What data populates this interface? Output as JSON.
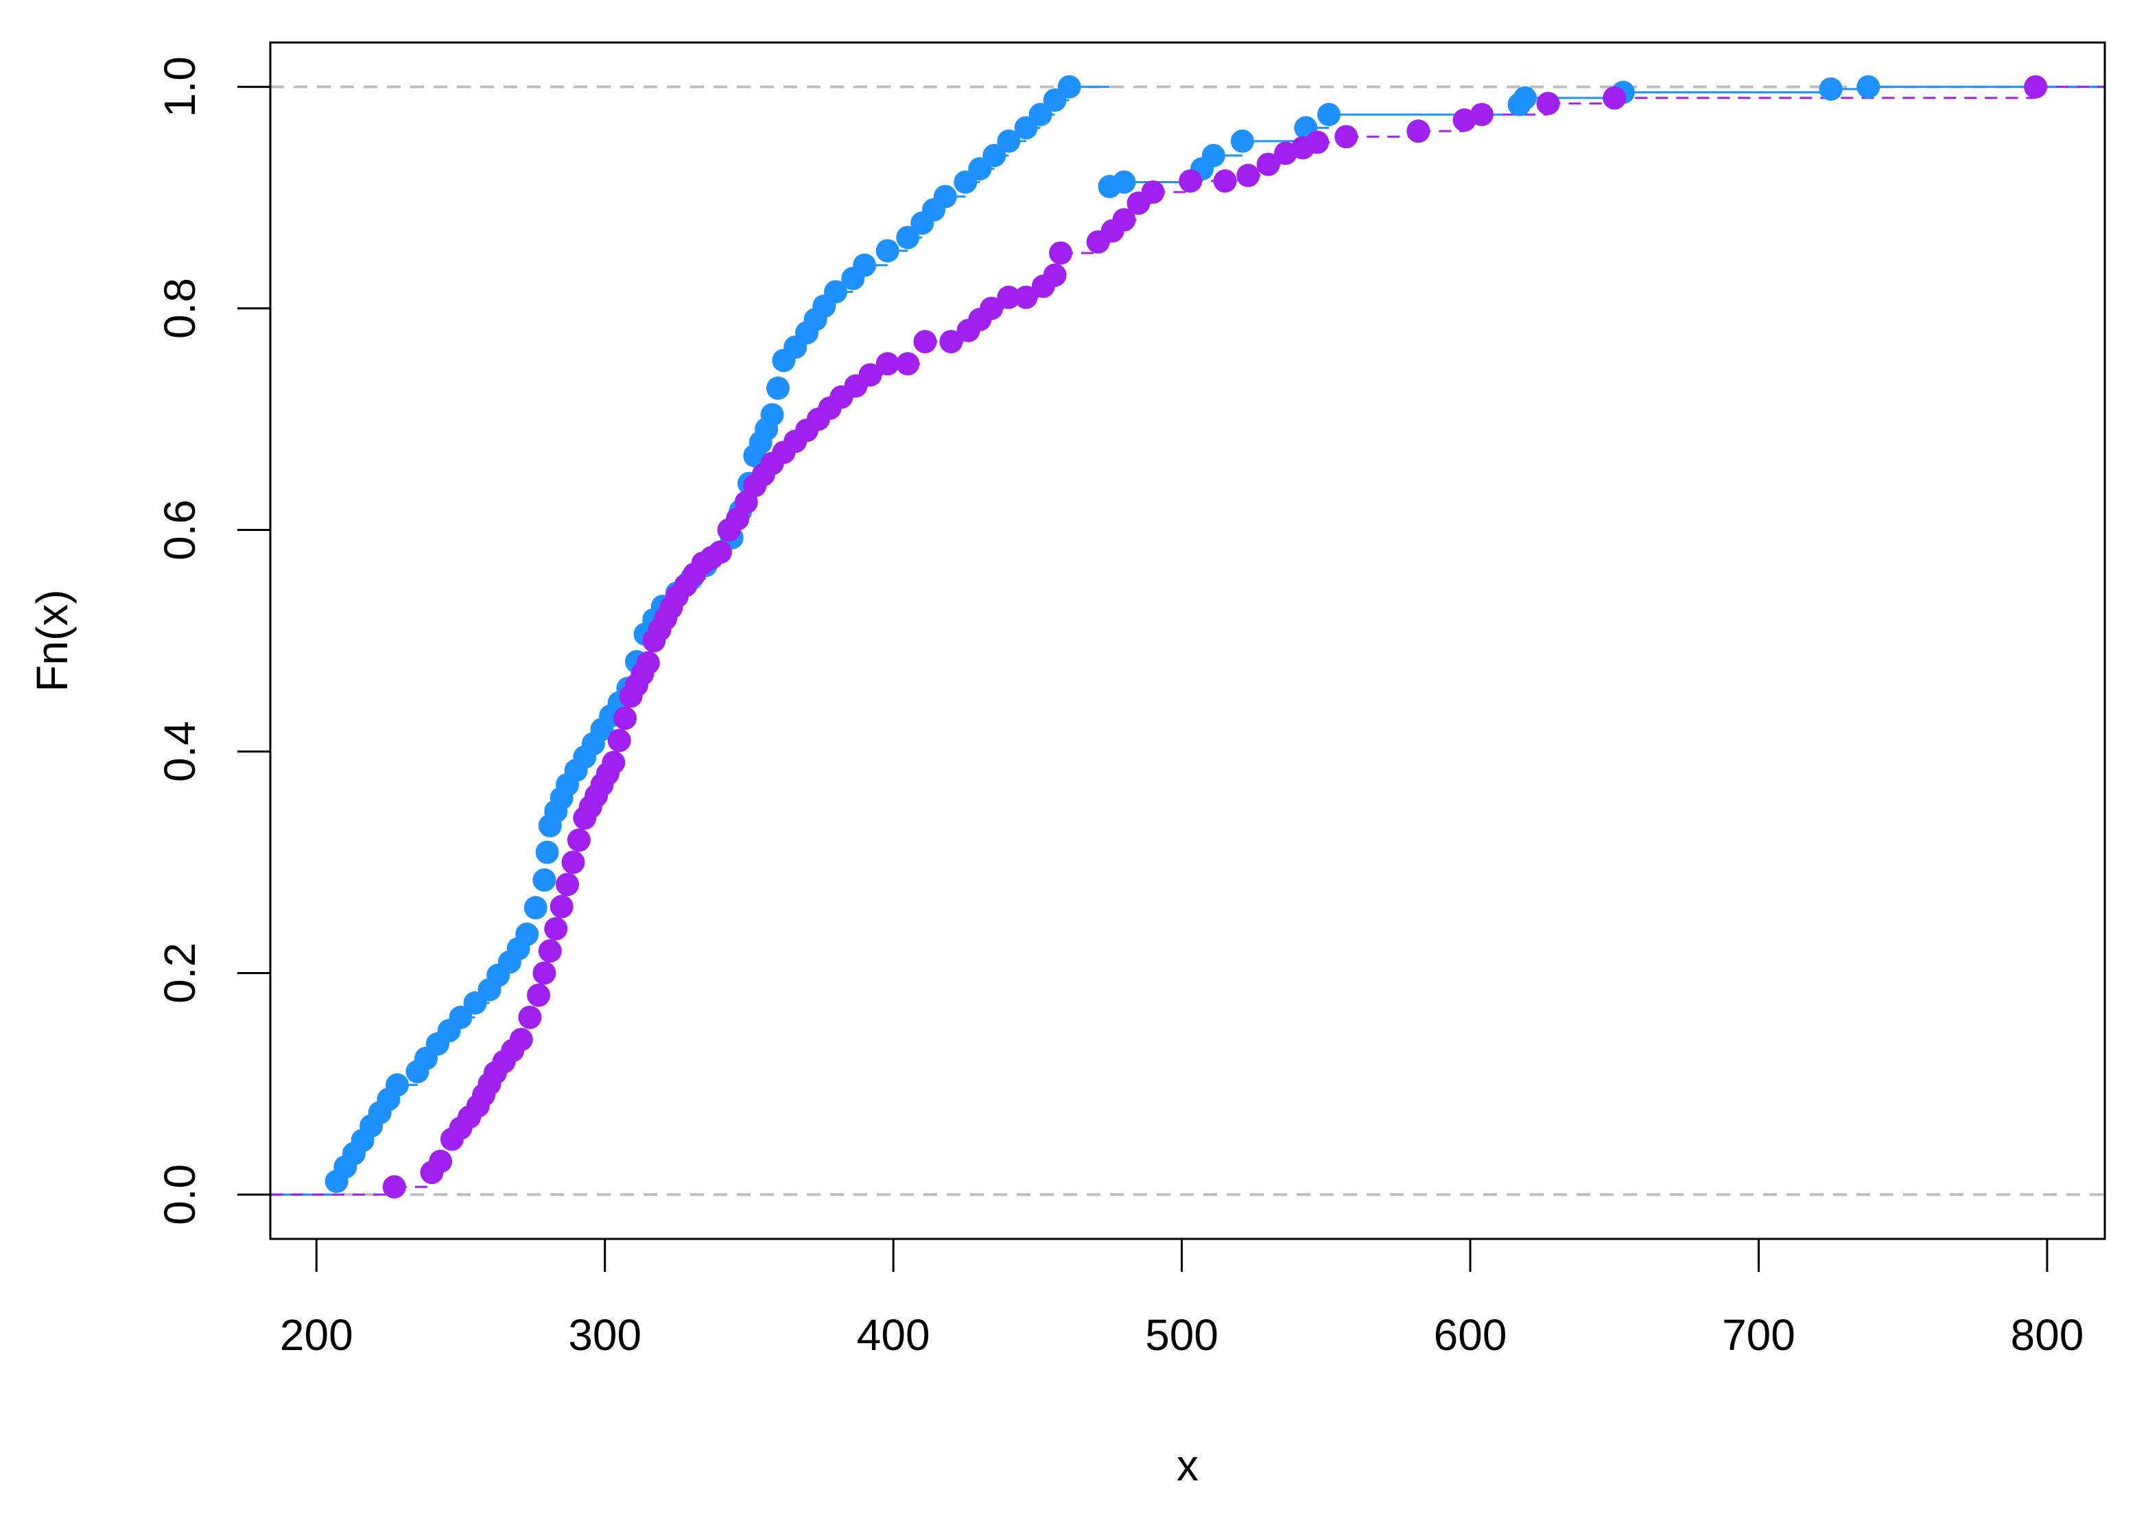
{
  "chart_data": {
    "type": "line",
    "step": true,
    "title": "",
    "xlabel": "x",
    "ylabel": "Fn(x)",
    "xlim": [
      184,
      820
    ],
    "ylim": [
      -0.04,
      1.04
    ],
    "x_ticks": [
      200,
      300,
      400,
      500,
      600,
      700,
      800
    ],
    "y_ticks": [
      0.0,
      0.2,
      0.4,
      0.6,
      0.8,
      1.0
    ],
    "x_tick_labels": [
      "200",
      "300",
      "400",
      "500",
      "600",
      "700",
      "800"
    ],
    "y_tick_labels": [
      "0.0",
      "0.2",
      "0.4",
      "0.6",
      "0.8",
      "1.0"
    ],
    "reference_lines": [
      0,
      1
    ],
    "grid": false,
    "legend": "none",
    "series": [
      {
        "color": "#1E90FF",
        "line_style": "solid",
        "x": [
          207,
          210,
          213,
          216,
          219,
          222,
          225,
          228,
          235,
          238,
          242,
          246,
          250,
          255,
          260,
          263,
          267,
          270,
          273,
          276,
          279,
          280,
          281,
          283,
          285,
          287,
          290,
          293,
          296,
          299,
          302,
          305,
          308,
          311,
          314,
          317,
          320,
          325,
          330,
          335,
          340,
          344,
          347,
          350,
          352,
          354,
          356,
          358,
          360,
          362,
          366,
          370,
          373,
          376,
          380,
          386,
          390,
          398,
          405,
          410,
          414,
          418,
          425,
          430,
          435,
          440,
          446,
          451,
          456,
          461,
          475,
          480,
          507,
          511,
          521,
          543,
          551,
          617,
          619,
          653,
          725,
          738
        ],
        "y": [
          0.012,
          0.025,
          0.037,
          0.049,
          0.062,
          0.074,
          0.086,
          0.099,
          0.111,
          0.123,
          0.136,
          0.148,
          0.16,
          0.173,
          0.185,
          0.198,
          0.21,
          0.222,
          0.235,
          0.259,
          0.284,
          0.309,
          0.333,
          0.346,
          0.358,
          0.37,
          0.383,
          0.395,
          0.407,
          0.42,
          0.432,
          0.444,
          0.457,
          0.481,
          0.506,
          0.519,
          0.531,
          0.543,
          0.556,
          0.568,
          0.58,
          0.593,
          0.617,
          0.642,
          0.667,
          0.679,
          0.691,
          0.704,
          0.728,
          0.753,
          0.765,
          0.778,
          0.79,
          0.802,
          0.815,
          0.827,
          0.839,
          0.852,
          0.864,
          0.877,
          0.889,
          0.901,
          0.914,
          0.926,
          0.938,
          0.951,
          0.963,
          0.975,
          0.988,
          1.0,
          0.91,
          0.914,
          0.926,
          0.938,
          0.951,
          0.963,
          0.975,
          0.984,
          0.99,
          0.995,
          0.998,
          1.0
        ]
      },
      {
        "color": "#A020F0",
        "line_style": "dashed",
        "x": [
          227,
          240,
          243,
          247,
          250,
          253,
          256,
          258,
          260,
          262,
          265,
          268,
          271,
          274,
          277,
          279,
          281,
          283,
          285,
          287,
          289,
          291,
          293,
          295,
          297,
          299,
          301,
          303,
          305,
          307,
          309,
          311,
          313,
          315,
          317,
          319,
          321,
          323,
          325,
          328,
          331,
          334,
          337,
          340,
          343,
          346,
          349,
          352,
          355,
          358,
          362,
          366,
          370,
          374,
          378,
          382,
          387,
          392,
          398,
          405,
          411,
          420,
          426,
          430,
          434,
          440,
          446,
          452,
          456,
          458,
          471,
          476,
          480,
          485,
          490,
          503,
          515,
          523,
          530,
          536,
          542,
          547,
          557,
          582,
          598,
          604,
          627,
          650,
          796
        ],
        "y": [
          0.007,
          0.02,
          0.03,
          0.05,
          0.06,
          0.07,
          0.08,
          0.09,
          0.1,
          0.11,
          0.12,
          0.13,
          0.14,
          0.16,
          0.18,
          0.2,
          0.22,
          0.24,
          0.26,
          0.28,
          0.3,
          0.32,
          0.34,
          0.35,
          0.36,
          0.37,
          0.38,
          0.39,
          0.41,
          0.43,
          0.45,
          0.46,
          0.47,
          0.48,
          0.5,
          0.51,
          0.52,
          0.53,
          0.54,
          0.55,
          0.56,
          0.57,
          0.575,
          0.58,
          0.6,
          0.61,
          0.625,
          0.64,
          0.65,
          0.66,
          0.67,
          0.68,
          0.69,
          0.7,
          0.71,
          0.72,
          0.73,
          0.74,
          0.75,
          0.75,
          0.77,
          0.77,
          0.78,
          0.79,
          0.8,
          0.81,
          0.81,
          0.82,
          0.83,
          0.85,
          0.86,
          0.87,
          0.88,
          0.895,
          0.905,
          0.915,
          0.915,
          0.92,
          0.93,
          0.94,
          0.945,
          0.95,
          0.955,
          0.96,
          0.97,
          0.975,
          0.985,
          0.99,
          1.0
        ]
      }
    ]
  }
}
